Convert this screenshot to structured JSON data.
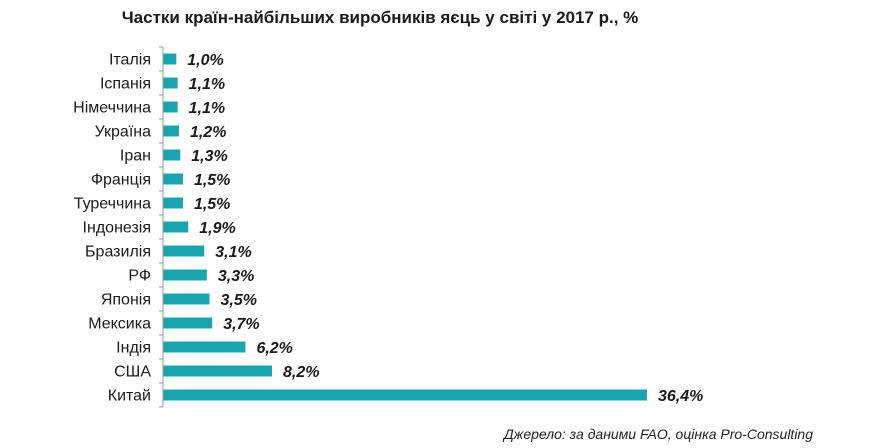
{
  "chart_data": {
    "type": "bar",
    "orientation": "horizontal",
    "title": "Частки країн-найбільших виробників яєць у світі у 2017 р., %",
    "categories": [
      "Італія",
      "Іспанія",
      "Німеччина",
      "Україна",
      "Іран",
      "Франція",
      "Туреччина",
      "Індонезія",
      "Бразилія",
      "РФ",
      "Японія",
      "Мексика",
      "Індія",
      "США",
      "Китай"
    ],
    "values": [
      1.0,
      1.1,
      1.1,
      1.2,
      1.3,
      1.5,
      1.5,
      1.9,
      3.1,
      3.3,
      3.5,
      3.7,
      6.2,
      8.2,
      36.4
    ],
    "value_labels": [
      "1,0%",
      "1,1%",
      "1,1%",
      "1,2%",
      "1,3%",
      "1,5%",
      "1,5%",
      "1,9%",
      "3,1%",
      "3,3%",
      "3,5%",
      "3,7%",
      "6,2%",
      "8,2%",
      "36,4%"
    ],
    "xlim": [
      0,
      36.4
    ],
    "color": "#1aa5ae",
    "grid": false,
    "legend": "none",
    "source": "Джерело: за даними  FAO,  оцінка Pro-Consulting"
  }
}
